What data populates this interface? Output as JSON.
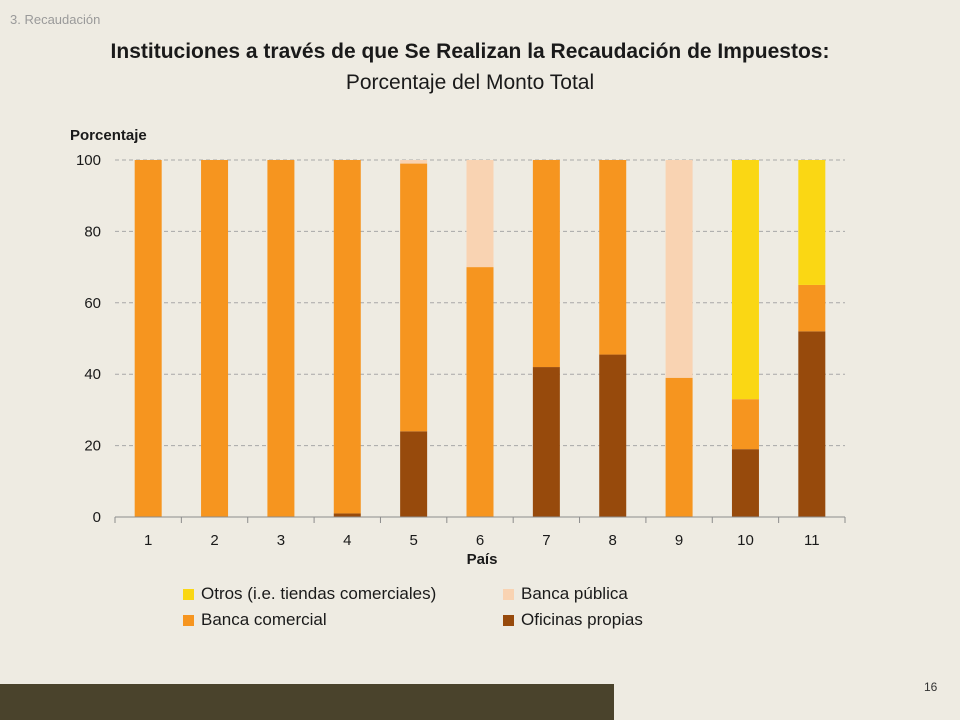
{
  "section_label": "3. Recaudación",
  "title": "Instituciones a través de que Se Realizan la Recaudación de Impuestos:",
  "subtitle": "Porcentaje del Monto Total",
  "page_number": "16",
  "colors": {
    "background": "#eeebe2",
    "footer_bar": "#4a432c",
    "gridline": "#a8a8a8"
  },
  "chart_data": {
    "type": "bar",
    "stacked": true,
    "ylabel": "Porcentaje",
    "xlabel": "País",
    "ylim": [
      0,
      100
    ],
    "yticks": [
      0,
      20,
      40,
      60,
      80,
      100
    ],
    "grid": true,
    "legend_position": "bottom",
    "categories": [
      "1",
      "2",
      "3",
      "4",
      "5",
      "6",
      "7",
      "8",
      "9",
      "10",
      "11"
    ],
    "series": [
      {
        "name": "Oficinas propias",
        "color": "#974a0c",
        "values": [
          0,
          0,
          0,
          1,
          24,
          0,
          42,
          45.5,
          0,
          19,
          52
        ]
      },
      {
        "name": "Banca comercial",
        "color": "#f6951f",
        "values": [
          100,
          100,
          100,
          99,
          75,
          70,
          58,
          54.5,
          39,
          14,
          13
        ]
      },
      {
        "name": "Banca pública",
        "color": "#f9d3b2",
        "values": [
          0,
          0,
          0,
          0,
          1,
          30,
          0,
          0,
          61,
          0,
          0
        ]
      },
      {
        "name": "Otros (i.e. tiendas comerciales)",
        "color": "#fad714",
        "values": [
          0,
          0,
          0,
          0,
          0,
          0,
          0,
          0,
          0,
          67,
          35
        ]
      }
    ],
    "legend_order": [
      "Otros (i.e. tiendas comerciales)",
      "Banca pública",
      "Banca comercial",
      "Oficinas propias"
    ]
  }
}
